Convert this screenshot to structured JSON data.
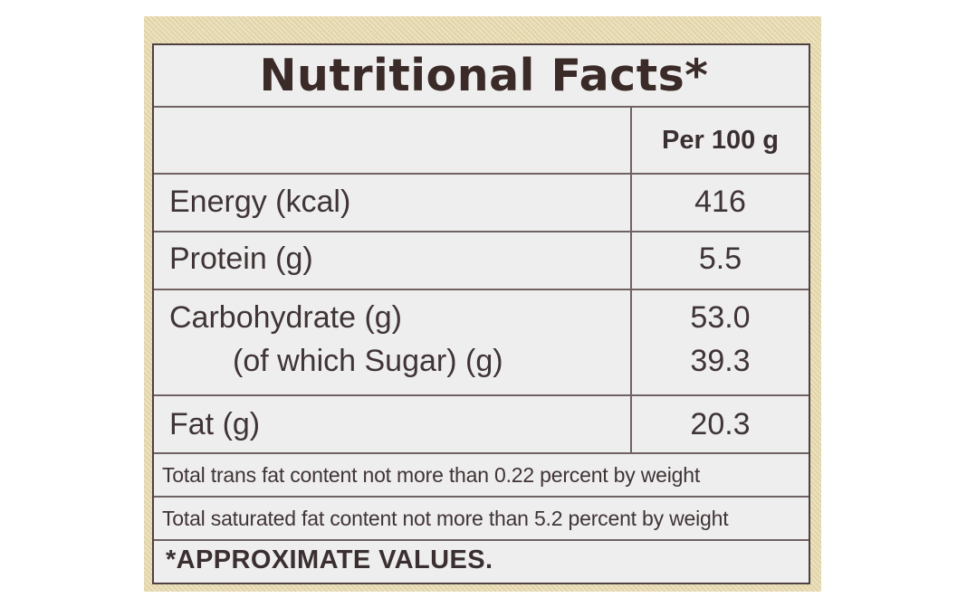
{
  "panel": {
    "title": "Nutritional Facts*",
    "column_header": "Per 100 g",
    "rows": [
      {
        "label": "Energy (kcal)",
        "value": "416"
      },
      {
        "label": "Protein (g)",
        "value": "5.5"
      },
      {
        "label": "Carbohydrate (g)",
        "value": "53.0",
        "sub_label": "(of which Sugar) (g)",
        "sub_value": "39.3"
      },
      {
        "label": "Fat (g)",
        "value": "20.3"
      }
    ],
    "notes": [
      "Total trans fat content not more than 0.22 percent by weight",
      "Total saturated fat content not more than 5.2 percent by weight"
    ],
    "footer": "*APPROXIMATE VALUES."
  },
  "colors": {
    "text": "#3f3436",
    "border": "#4f4141",
    "panel_background": "#efeeee",
    "packaging_background": "#e9dcb0"
  }
}
